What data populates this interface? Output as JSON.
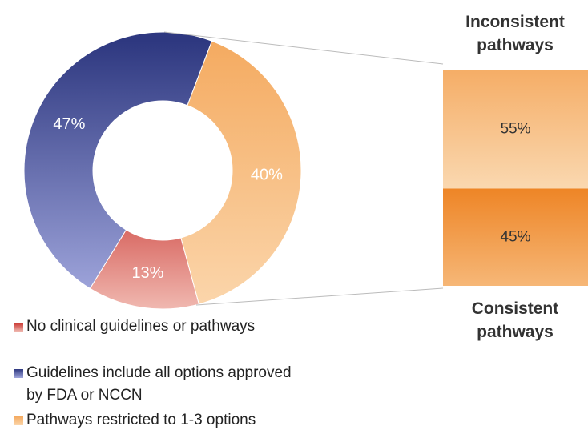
{
  "chart_data": [
    {
      "type": "pie",
      "categories": [
        "No clinical guidelines or pathways",
        "Guidelines include all options approved by FDA or NCCN",
        "Pathways restricted to 1-3 options"
      ],
      "values": [
        13,
        47,
        40
      ],
      "value_labels": [
        "13%",
        "47%",
        "40%"
      ],
      "colors": [
        [
          "#c8312c",
          "#f0b8b0"
        ],
        [
          "#2e3880",
          "#a0a6dc"
        ],
        [
          "#f4a95e",
          "#fbd6ac"
        ]
      ]
    },
    {
      "type": "bar",
      "categories": [
        "Inconsistent pathways",
        "Consistent pathways"
      ],
      "values": [
        55,
        45
      ],
      "value_labels": [
        "55%",
        "45%"
      ],
      "colors": [
        [
          "#f5ad66",
          "#fad8b0"
        ],
        [
          "#ee8526",
          "#f6b777"
        ]
      ]
    }
  ]
}
